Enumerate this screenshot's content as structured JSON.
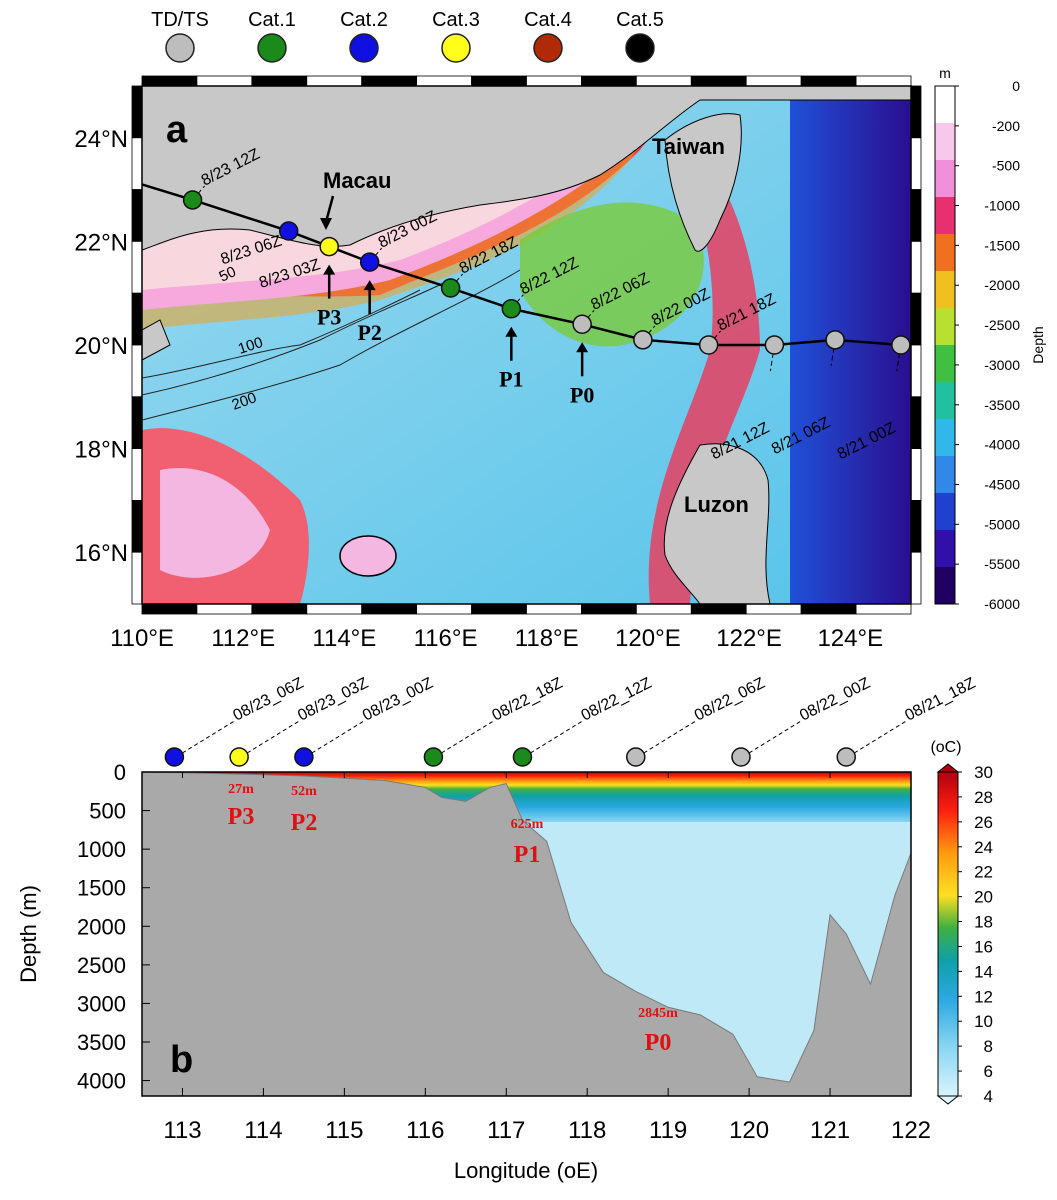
{
  "legend": {
    "items": [
      {
        "label": "TD/TS",
        "color": "#bdbdbd"
      },
      {
        "label": "Cat.1",
        "color": "#1a8a1a"
      },
      {
        "label": "Cat.2",
        "color": "#1010e0"
      },
      {
        "label": "Cat.3",
        "color": "#ffff1a"
      },
      {
        "label": "Cat.4",
        "color": "#b02a0a"
      },
      {
        "label": "Cat.5",
        "color": "#000000"
      }
    ]
  },
  "map": {
    "panel_label": "a",
    "places": [
      "Macau",
      "Taiwan",
      "Luzon"
    ],
    "lat_ticks": [
      "16°N",
      "18°N",
      "20°N",
      "22°N",
      "24°N"
    ],
    "lon_ticks": [
      "110°E",
      "112°E",
      "114°E",
      "116°E",
      "118°E",
      "120°E",
      "122°E",
      "124°E"
    ],
    "contour_labels": [
      "50",
      "100",
      "200"
    ],
    "track_points": [
      {
        "lon": 111.0,
        "lat": 22.8,
        "cat": "Cat.1",
        "label": "8/23 12Z"
      },
      {
        "lon": 112.9,
        "lat": 22.2,
        "cat": "Cat.2",
        "label": "8/23 06Z"
      },
      {
        "lon": 113.7,
        "lat": 21.9,
        "cat": "Cat.3",
        "label": "8/23 03Z"
      },
      {
        "lon": 114.5,
        "lat": 21.6,
        "cat": "Cat.2",
        "label": "8/23 00Z"
      },
      {
        "lon": 116.1,
        "lat": 21.1,
        "cat": "Cat.1",
        "label": "8/22 18Z"
      },
      {
        "lon": 117.3,
        "lat": 20.7,
        "cat": "Cat.1",
        "label": "8/22 12Z"
      },
      {
        "lon": 118.7,
        "lat": 20.4,
        "cat": "TD/TS",
        "label": "8/22 06Z"
      },
      {
        "lon": 119.9,
        "lat": 20.1,
        "cat": "TD/TS",
        "label": "8/22 00Z"
      },
      {
        "lon": 121.2,
        "lat": 20.0,
        "cat": "TD/TS",
        "label": "8/21 18Z"
      },
      {
        "lon": 122.5,
        "lat": 20.0,
        "cat": "TD/TS",
        "label": "8/21 12Z"
      },
      {
        "lon": 123.7,
        "lat": 20.1,
        "cat": "TD/TS",
        "label": "8/21 06Z"
      },
      {
        "lon": 125.0,
        "lat": 20.0,
        "cat": "TD/TS",
        "label": "8/21 00Z"
      }
    ],
    "stations": [
      {
        "name": "P3",
        "lon": 113.7,
        "lat": 21.9
      },
      {
        "name": "P2",
        "lon": 114.5,
        "lat": 21.6
      },
      {
        "name": "P1",
        "lon": 117.3,
        "lat": 20.7
      },
      {
        "name": "P0",
        "lon": 118.7,
        "lat": 20.4
      }
    ],
    "colorbar": {
      "unit": "m",
      "title": "Depth",
      "ticks": [
        "0",
        "-200",
        "-500",
        "-1000",
        "-1500",
        "-2000",
        "-2500",
        "-3000",
        "-3500",
        "-4000",
        "-4500",
        "-5000",
        "-5500",
        "-6000"
      ],
      "colors": [
        "#ffffff",
        "#f8c8ec",
        "#f090d8",
        "#e83070",
        "#f07020",
        "#f0c020",
        "#b8e030",
        "#40c040",
        "#20c0a0",
        "#30b8e8",
        "#3088e8",
        "#2040d0",
        "#3010a8",
        "#200060"
      ]
    }
  },
  "section": {
    "panel_label": "b",
    "xlabel": "Longitude (oE)",
    "ylabel": "Depth (m)",
    "x_ticks": [
      "113",
      "114",
      "115",
      "116",
      "117",
      "118",
      "119",
      "120",
      "121",
      "122"
    ],
    "y_ticks": [
      "0",
      "500",
      "1000",
      "1500",
      "2000",
      "2500",
      "3000",
      "3500",
      "4000"
    ],
    "times": [
      {
        "lon": 112.9,
        "cat": "Cat.2",
        "label": "08/23_06Z"
      },
      {
        "lon": 113.7,
        "cat": "Cat.3",
        "label": "08/23_03Z"
      },
      {
        "lon": 114.5,
        "cat": "Cat.2",
        "label": "08/23_00Z"
      },
      {
        "lon": 116.1,
        "cat": "Cat.1",
        "label": "08/22_18Z"
      },
      {
        "lon": 117.2,
        "cat": "Cat.1",
        "label": "08/22_12Z"
      },
      {
        "lon": 118.6,
        "cat": "TD/TS",
        "label": "08/22_06Z"
      },
      {
        "lon": 119.9,
        "cat": "TD/TS",
        "label": "08/22_00Z"
      },
      {
        "lon": 121.2,
        "cat": "TD/TS",
        "label": "08/21_18Z"
      }
    ],
    "stations": [
      {
        "name": "P3",
        "depth_label": "27m"
      },
      {
        "name": "P2",
        "depth_label": "52m"
      },
      {
        "name": "P1",
        "depth_label": "625m"
      },
      {
        "name": "P0",
        "depth_label": "2845m"
      }
    ],
    "bathymetry": {
      "lon": [
        112.5,
        113.0,
        113.7,
        114.5,
        115.0,
        115.5,
        116.0,
        116.2,
        116.5,
        116.8,
        117.0,
        117.2,
        117.5,
        117.8,
        118.2,
        118.6,
        119.0,
        119.4,
        119.8,
        120.1,
        120.5,
        120.8,
        120.9,
        121.0,
        121.2,
        121.5,
        121.8,
        122.0
      ],
      "depth": [
        0,
        10,
        27,
        52,
        80,
        110,
        200,
        330,
        380,
        200,
        150,
        625,
        900,
        1950,
        2600,
        2845,
        3050,
        3150,
        3400,
        3950,
        4020,
        3350,
        2600,
        1850,
        2100,
        2750,
        1600,
        1050
      ]
    },
    "colorbar": {
      "unit": "(oC)",
      "ticks": [
        "4",
        "6",
        "8",
        "10",
        "12",
        "14",
        "16",
        "18",
        "20",
        "22",
        "24",
        "26",
        "28",
        "30"
      ]
    }
  }
}
